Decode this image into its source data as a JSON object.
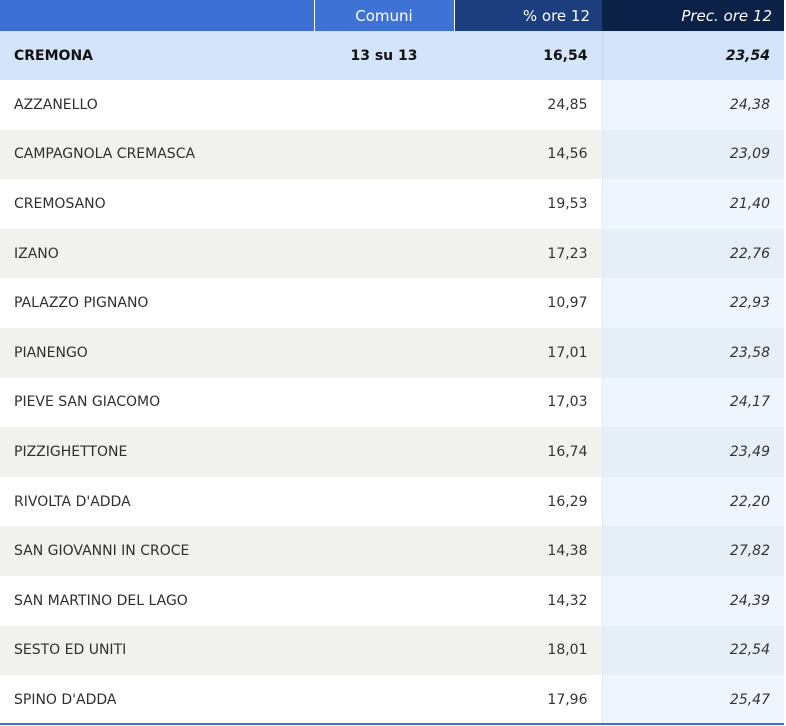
{
  "header": {
    "col_name": "",
    "col_comuni": "Comuni",
    "col_pct": "% ore 12",
    "col_prec": "Prec. ore 12"
  },
  "total": {
    "name": "CREMONA",
    "comuni": "13 su 13",
    "pct": "16,54",
    "prec": "23,54"
  },
  "rows": [
    {
      "name": "AZZANELLO",
      "pct": "24,85",
      "prec": "24,38"
    },
    {
      "name": "CAMPAGNOLA CREMASCA",
      "pct": "14,56",
      "prec": "23,09"
    },
    {
      "name": "CREMOSANO",
      "pct": "19,53",
      "prec": "21,40"
    },
    {
      "name": "IZANO",
      "pct": "17,23",
      "prec": "22,76"
    },
    {
      "name": "PALAZZO PIGNANO",
      "pct": "10,97",
      "prec": "22,93"
    },
    {
      "name": "PIANENGO",
      "pct": "17,01",
      "prec": "23,58"
    },
    {
      "name": "PIEVE SAN GIACOMO",
      "pct": "17,03",
      "prec": "24,17"
    },
    {
      "name": "PIZZIGHETTONE",
      "pct": "16,74",
      "prec": "23,49"
    },
    {
      "name": "RIVOLTA D'ADDA",
      "pct": "16,29",
      "prec": "22,20"
    },
    {
      "name": "SAN GIOVANNI IN CROCE",
      "pct": "14,38",
      "prec": "27,82"
    },
    {
      "name": "SAN MARTINO DEL LAGO",
      "pct": "14,32",
      "prec": "24,39"
    },
    {
      "name": "SESTO ED UNITI",
      "pct": "18,01",
      "prec": "22,54"
    },
    {
      "name": "SPINO D'ADDA",
      "pct": "17,96",
      "prec": "25,47"
    }
  ]
}
